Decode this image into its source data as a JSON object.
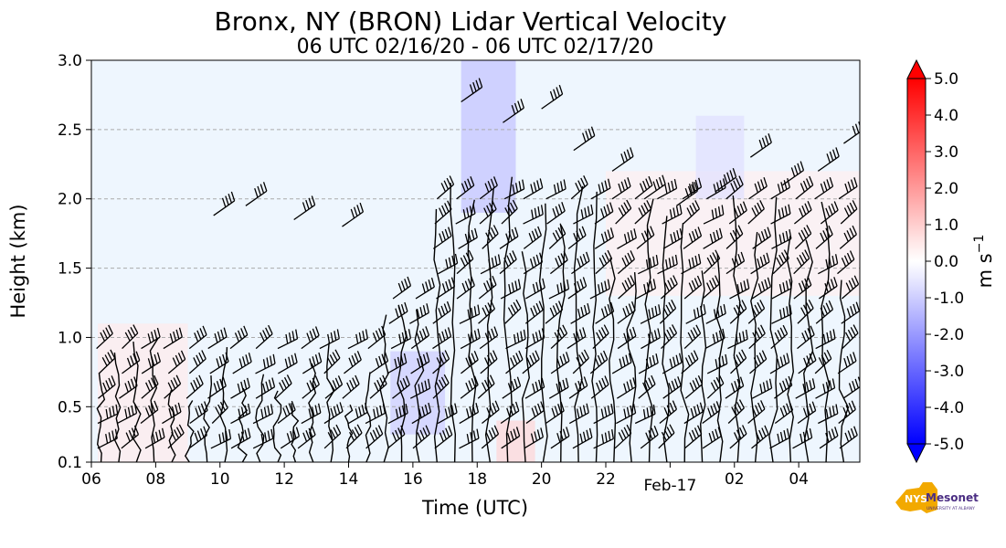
{
  "chart_data": {
    "type": "heatmap",
    "title": "Bronx, NY (BRON) Lidar Vertical Velocity",
    "subtitle": "06 UTC 02/16/20 - 06 UTC 02/17/20",
    "xlabel": "Time (UTC)",
    "ylabel": "Height (km)",
    "x_ticks": [
      {
        "hour": 0,
        "label": "06"
      },
      {
        "hour": 2,
        "label": "08"
      },
      {
        "hour": 4,
        "label": "10"
      },
      {
        "hour": 6,
        "label": "12"
      },
      {
        "hour": 8,
        "label": "14"
      },
      {
        "hour": 10,
        "label": "16"
      },
      {
        "hour": 12,
        "label": "18"
      },
      {
        "hour": 14,
        "label": "20"
      },
      {
        "hour": 16,
        "label": "22"
      },
      {
        "hour": 18,
        "label": "Feb-17"
      },
      {
        "hour": 20,
        "label": "02"
      },
      {
        "hour": 22,
        "label": "04"
      }
    ],
    "xlim": [
      0,
      23.9
    ],
    "y_ticks": [
      {
        "value": 0.1,
        "label": "0.1"
      },
      {
        "value": 0.5,
        "label": "0.5"
      },
      {
        "value": 1.0,
        "label": "1.0"
      },
      {
        "value": 1.5,
        "label": "1.5"
      },
      {
        "value": 2.0,
        "label": "2.0"
      },
      {
        "value": 2.5,
        "label": "2.5"
      },
      {
        "value": 3.0,
        "label": "3.0"
      }
    ],
    "ylim": [
      0.1,
      3.0
    ],
    "grid_lines_y": [
      0.5,
      1.0,
      1.5,
      2.0,
      2.5
    ],
    "colorbar": {
      "label": "m s",
      "label_exponent": "−1",
      "range": [
        -5.0,
        5.0
      ],
      "extend": "both",
      "tick_labels": [
        "5.0",
        "4.0",
        "3.0",
        "2.0",
        "1.0",
        "0.0",
        "-1.0",
        "-2.0",
        "-3.0",
        "-4.0",
        "-5.0"
      ],
      "tick_values": [
        5,
        4,
        3,
        2,
        1,
        0,
        -1,
        -2,
        -3,
        -4,
        -5
      ]
    },
    "velocity_regions": [
      {
        "t0": 11.5,
        "t1": 13.2,
        "h0": 1.9,
        "h1": 3.0,
        "w": -1.2
      },
      {
        "t0": 9.3,
        "t1": 11.0,
        "h0": 0.3,
        "h1": 0.9,
        "w": -1.0
      },
      {
        "t0": 12.6,
        "t1": 13.8,
        "h0": 0.1,
        "h1": 0.4,
        "w": 0.8
      },
      {
        "t0": 0.2,
        "t1": 3.0,
        "h0": 0.1,
        "h1": 1.1,
        "w": 0.4
      },
      {
        "t0": 16.0,
        "t1": 23.9,
        "h0": 1.3,
        "h1": 2.2,
        "w": 0.3
      },
      {
        "t0": 18.8,
        "t1": 20.3,
        "h0": 2.0,
        "h1": 2.6,
        "w": -0.6
      }
    ],
    "wind_barbs": [
      {
        "t": 3.8,
        "h": 1.88,
        "dir": "W"
      },
      {
        "t": 4.8,
        "h": 1.95,
        "dir": "SW"
      },
      {
        "t": 6.3,
        "h": 1.85,
        "dir": "SW"
      },
      {
        "t": 7.8,
        "h": 1.8,
        "dir": "SW"
      },
      {
        "t": 11.5,
        "h": 2.7,
        "dir": "SW"
      },
      {
        "t": 12.8,
        "h": 2.55,
        "dir": "SW"
      },
      {
        "t": 14.0,
        "h": 2.65,
        "dir": "SW"
      },
      {
        "t": 15.0,
        "h": 2.35,
        "dir": "SW"
      },
      {
        "t": 16.2,
        "h": 2.2,
        "dir": "SW"
      },
      {
        "t": 17.2,
        "h": 2.0,
        "dir": "SW"
      },
      {
        "t": 18.2,
        "h": 1.95,
        "dir": "SW"
      },
      {
        "t": 19.4,
        "h": 2.05,
        "dir": "SW"
      },
      {
        "t": 20.5,
        "h": 2.3,
        "dir": "SW"
      },
      {
        "t": 21.5,
        "h": 2.1,
        "dir": "SW"
      },
      {
        "t": 22.6,
        "h": 2.2,
        "dir": "SW"
      },
      {
        "t": 23.4,
        "h": 2.4,
        "dir": "SW"
      }
    ],
    "logo": {
      "text_main": "Mesonet",
      "text_prefix": "NYS",
      "text_sub": "UNIVERSITY AT ALBANY"
    }
  }
}
